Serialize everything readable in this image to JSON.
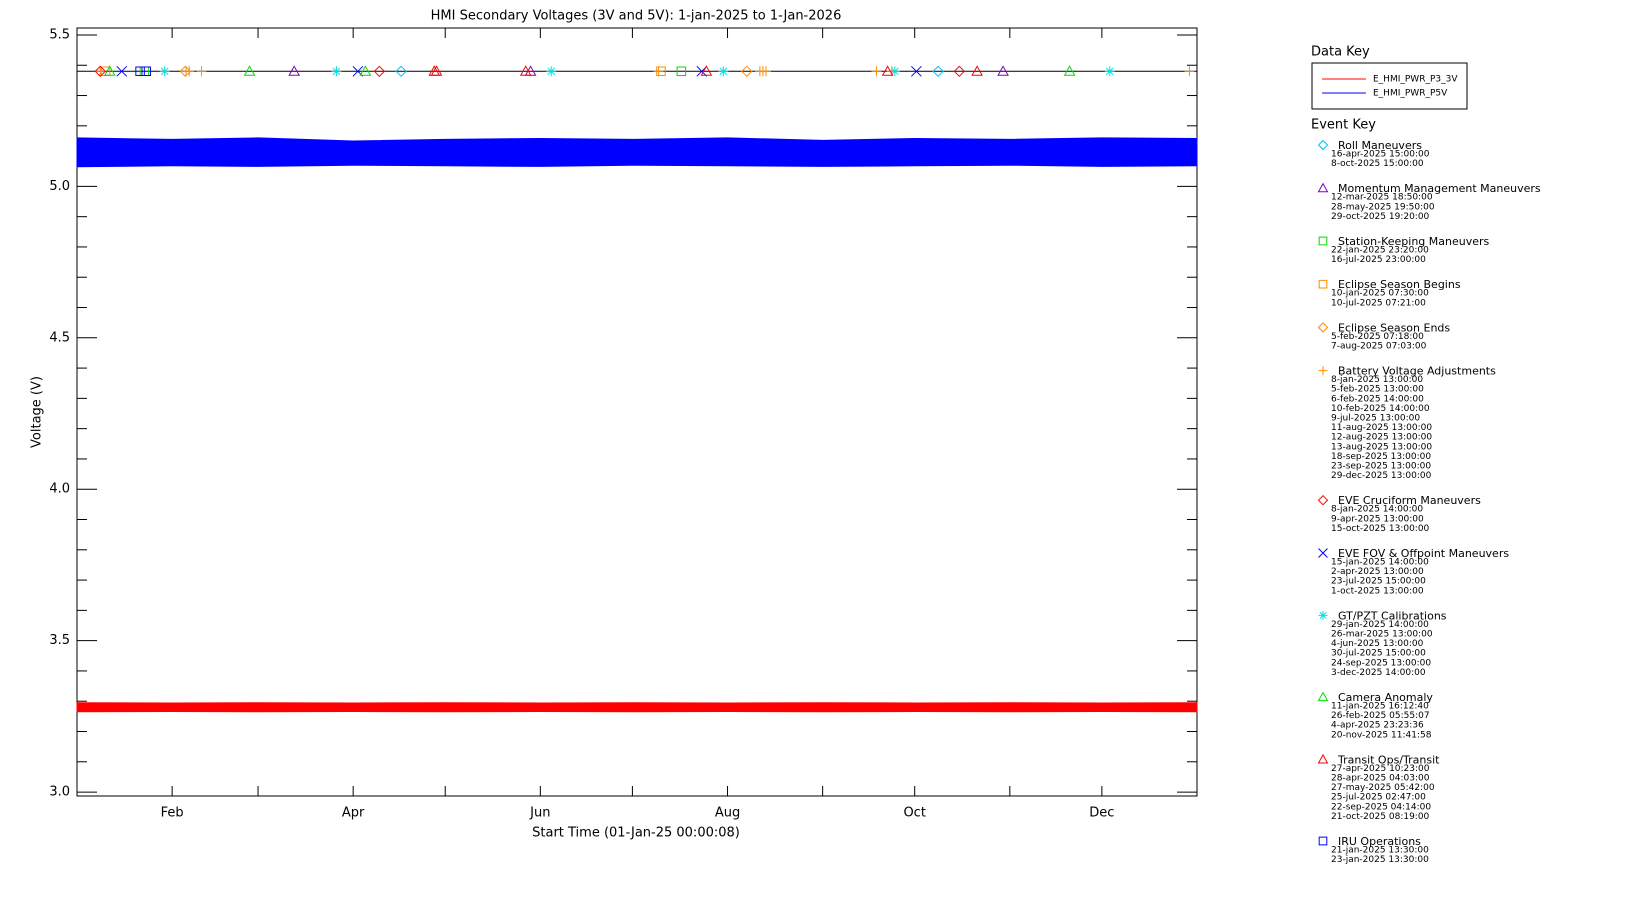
{
  "chart_data": {
    "type": "band",
    "title": "HMI Secondary Voltages (3V and 5V): 1-jan-2025 to 1-Jan-2026",
    "x_label": "Start Time (01-Jan-25 00:00:08)",
    "y_label": "Voltage (V)",
    "xlim": [
      "2025-01-01",
      "2026-01-01"
    ],
    "xticks": [
      {
        "value": "2025-02-01",
        "label": "Feb"
      },
      {
        "value": "2025-04-01",
        "label": "Apr"
      },
      {
        "value": "2025-06-01",
        "label": "Jun"
      },
      {
        "value": "2025-08-01",
        "label": "Aug"
      },
      {
        "value": "2025-10-01",
        "label": "Oct"
      },
      {
        "value": "2025-12-01",
        "label": "Dec"
      }
    ],
    "xminorticks": [
      "2025-03-01",
      "2025-05-01",
      "2025-07-01",
      "2025-09-01",
      "2025-11-01"
    ],
    "ylim": [
      2.987,
      5.523
    ],
    "yticks": [
      {
        "value": 3,
        "label": "3.0"
      },
      3.5,
      {
        "value": 4,
        "label": "4.0"
      },
      4.5,
      {
        "value": 5,
        "label": "5.0"
      },
      5.5
    ],
    "yminorticks": [
      3.1,
      3.2,
      3.3,
      3.4,
      3.6,
      3.7,
      3.8,
      3.9,
      4.1,
      4.2,
      4.3,
      4.4,
      4.6,
      4.7,
      4.8,
      4.9,
      5.1,
      5.2,
      5.3,
      5.4
    ],
    "legend_title": "Data Key",
    "x": [
      "2025-01-01",
      "2025-02-01",
      "2025-03-01",
      "2025-04-01",
      "2025-05-01",
      "2025-06-01",
      "2025-07-01",
      "2025-08-01",
      "2025-09-01",
      "2025-10-01",
      "2025-11-01",
      "2025-12-01",
      "2026-01-01"
    ],
    "series": [
      {
        "name": "E_HMI_PWR_P3_3V",
        "color": "#ff0000",
        "values_min": [
          3.265,
          3.266,
          3.265,
          3.266,
          3.265,
          3.266,
          3.265,
          3.266,
          3.265,
          3.266,
          3.265,
          3.266,
          3.265
        ],
        "values_max": [
          3.295,
          3.294,
          3.295,
          3.294,
          3.295,
          3.294,
          3.295,
          3.294,
          3.295,
          3.294,
          3.295,
          3.294,
          3.295
        ]
      },
      {
        "name": "E_HMI_PWR_P5V",
        "color": "#0000ff",
        "values_min": [
          5.065,
          5.068,
          5.066,
          5.07,
          5.068,
          5.066,
          5.07,
          5.068,
          5.066,
          5.068,
          5.07,
          5.066,
          5.068
        ],
        "values_max": [
          5.16,
          5.155,
          5.16,
          5.15,
          5.155,
          5.158,
          5.155,
          5.16,
          5.152,
          5.158,
          5.155,
          5.16,
          5.158
        ]
      }
    ],
    "event_key_title": "Event Key",
    "event_line": 5.38,
    "events": [
      {
        "name": "Roll Maneuvers",
        "color": "#00c0ff",
        "symbol": "diamond",
        "dates": [
          "16-apr-2025 15:00:00",
          "8-oct-2025 15:00:00"
        ]
      },
      {
        "name": "Momentum Management Maneuvers",
        "color": "#7f00c0",
        "symbol": "triangle",
        "dates": [
          "12-mar-2025 18:50:00",
          "28-may-2025 19:50:00",
          "29-oct-2025 19:20:00"
        ]
      },
      {
        "name": "Station-Keeping Maneuvers",
        "color": "#00dd00",
        "symbol": "square",
        "dates": [
          "22-jan-2025 23:20:00",
          "16-jul-2025 23:00:00"
        ]
      },
      {
        "name": "Eclipse Season Begins",
        "color": "#ff8c00",
        "symbol": "square",
        "dates": [
          "10-jan-2025 07:30:00",
          "10-jul-2025 07:21:00"
        ]
      },
      {
        "name": "Eclipse Season Ends",
        "color": "#ff8c00",
        "symbol": "diamond",
        "dates": [
          "5-feb-2025 07:18:00",
          "7-aug-2025 07:03:00"
        ]
      },
      {
        "name": "Battery Voltage Adjustments",
        "color": "#ff8c00",
        "symbol": "plus",
        "dates": [
          "8-jan-2025 13:00:00",
          "5-feb-2025 13:00:00",
          "6-feb-2025 14:00:00",
          "10-feb-2025 14:00:00",
          "9-jul-2025 13:00:00",
          "11-aug-2025 13:00:00",
          "12-aug-2025 13:00:00",
          "13-aug-2025 13:00:00",
          "18-sep-2025 13:00:00",
          "23-sep-2025 13:00:00",
          "29-dec-2025 13:00:00"
        ]
      },
      {
        "name": "EVE Cruciform Maneuvers",
        "color": "#ff0000",
        "symbol": "diamond",
        "dates": [
          "8-jan-2025 14:00:00",
          "9-apr-2025 13:00:00",
          "15-oct-2025 13:00:00"
        ]
      },
      {
        "name": "EVE FOV & Offpoint Maneuvers",
        "color": "#0000ff",
        "symbol": "x",
        "dates": [
          "15-jan-2025 14:00:00",
          "2-apr-2025 13:00:00",
          "23-jul-2025 15:00:00",
          "1-oct-2025 13:00:00"
        ]
      },
      {
        "name": "GT/PZT Calibrations",
        "color": "#00e0e0",
        "symbol": "asterisk",
        "dates": [
          "29-jan-2025 14:00:00",
          "26-mar-2025 13:00:00",
          "4-jun-2025 13:00:00",
          "30-jul-2025 15:00:00",
          "24-sep-2025 13:00:00",
          "3-dec-2025 14:00:00"
        ]
      },
      {
        "name": "Camera Anomaly",
        "color": "#00dd00",
        "symbol": "triangle",
        "dates": [
          "11-jan-2025 16:12:40",
          "26-feb-2025 05:55:07",
          "4-apr-2025 23:23:36",
          "20-nov-2025 11:41:58"
        ]
      },
      {
        "name": "Transit Ops/Transit",
        "color": "#ff0000",
        "symbol": "triangle",
        "dates": [
          "27-apr-2025 10:23:00",
          "28-apr-2025 04:03:00",
          "27-may-2025 05:42:00",
          "25-jul-2025 02:47:00",
          "22-sep-2025 04:14:00",
          "21-oct-2025 08:19:00"
        ]
      },
      {
        "name": "IRU Operations",
        "color": "#0000ff",
        "symbol": "square",
        "dates": [
          "21-jan-2025 13:30:00",
          "23-jan-2025 13:30:00"
        ]
      }
    ]
  }
}
